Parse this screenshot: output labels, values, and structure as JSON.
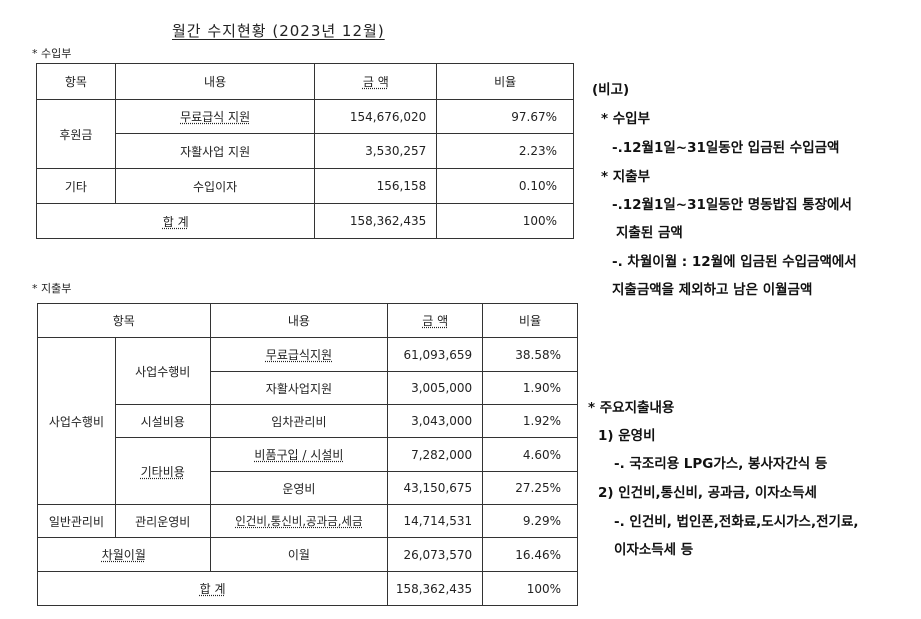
{
  "title": "월간 수지현황 (2023년 12월)",
  "income": {
    "section_label": "* 수입부",
    "headers": [
      "항목",
      "내용",
      "금 액",
      "비율"
    ],
    "rows": [
      {
        "category": "후원금",
        "content": "무료급식 지원",
        "amount": "154,676,020",
        "ratio": "97.67%"
      },
      {
        "content": "자활사업 지원",
        "amount": "3,530,257",
        "ratio": "2.23%"
      },
      {
        "category": "기타",
        "content": "수입이자",
        "amount": "156,158",
        "ratio": "0.10%"
      }
    ],
    "total": {
      "label": "합 계",
      "amount": "158,362,435",
      "ratio": "100%"
    }
  },
  "expense": {
    "section_label": "* 지출부",
    "headers": [
      "항목",
      "내용",
      "금 액",
      "비율"
    ],
    "group_business": "사업수행비",
    "group_general": "일반관리비",
    "sub_business": "사업수행비",
    "sub_facility": "시설비용",
    "sub_other": "기타비용",
    "sub_admin": "관리운영비",
    "rows": [
      {
        "content": "무료급식지원",
        "amount": "61,093,659",
        "ratio": "38.58%"
      },
      {
        "content": "자활사업지원",
        "amount": "3,005,000",
        "ratio": "1.90%"
      },
      {
        "content": "임차관리비",
        "amount": "3,043,000",
        "ratio": "1.92%"
      },
      {
        "content": "비품구입 / 시설비",
        "amount": "7,282,000",
        "ratio": "4.60%"
      },
      {
        "content": "운영비",
        "amount": "43,150,675",
        "ratio": "27.25%"
      },
      {
        "content": "인건비,통신비,공과금,세금",
        "amount": "14,714,531",
        "ratio": "9.29%"
      }
    ],
    "carryover": {
      "label": "차월이월",
      "content": "이월",
      "amount": "26,073,570",
      "ratio": "16.46%"
    },
    "total": {
      "label": "합 계",
      "amount": "158,362,435",
      "ratio": "100%"
    }
  },
  "notes": {
    "heading": "(비고)",
    "income_title": "* 수입부",
    "income_desc": "-.12월1일~31일동안 입금된 수입금액",
    "expense_title": "* 지출부",
    "expense_desc1": "-.12월1일~31일동안 명동밥집 통장에서",
    "expense_desc2": "지출된 금액",
    "carry_desc1": "-. 차월이월 : 12월에 입금된 수입금액에서",
    "carry_desc2": "지출금액을 제외하고 남은 이월금액"
  },
  "major": {
    "title": "* 주요지출내용",
    "item1": "1) 운영비",
    "item1_desc": "-. 국조리용 LPG가스, 봉사자간식 등",
    "item2": "2) 인건비,통신비, 공과금, 이자소득세",
    "item2_desc1": "-. 인건비, 법인폰,전화료,도시가스,전기료,",
    "item2_desc2": "이자소득세 등"
  }
}
